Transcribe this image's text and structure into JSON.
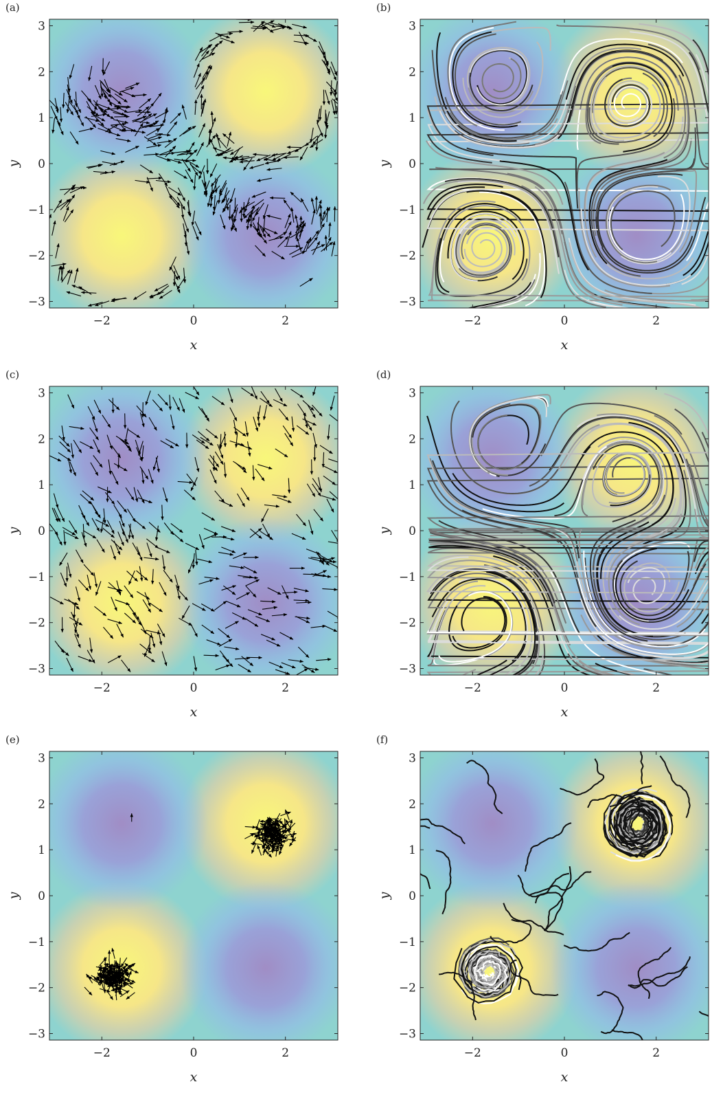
{
  "chart_data": [
    {
      "panel": "(a)",
      "type": "quiver",
      "xlabel": "x",
      "ylabel": "y",
      "xlim": [
        -3.14159,
        3.14159
      ],
      "ylim": [
        -3.14159,
        3.14159
      ],
      "xticks": [
        {
          "v": -2,
          "label": "−2"
        },
        {
          "v": 0,
          "label": "0"
        },
        {
          "v": 2,
          "label": "2"
        }
      ],
      "yticks": [
        {
          "v": 3,
          "label": "3"
        },
        {
          "v": 2,
          "label": "2"
        },
        {
          "v": 1,
          "label": "1"
        },
        {
          "v": 0,
          "label": "0"
        },
        {
          "v": -1,
          "label": "−1"
        },
        {
          "v": -2,
          "label": "−2"
        },
        {
          "v": -3,
          "label": "−3"
        }
      ],
      "background": "sin(x)sin(y) field",
      "maxima": [
        [
          1.57,
          1.57
        ],
        [
          -1.57,
          -1.57
        ]
      ],
      "minima": [
        [
          -1.57,
          1.57
        ],
        [
          1.57,
          -1.57
        ]
      ],
      "agents": "swarm along separatrix band"
    },
    {
      "panel": "(b)",
      "type": "trajectories",
      "xlabel": "x",
      "ylabel": "y",
      "xlim": [
        -3.14159,
        3.14159
      ],
      "ylim": [
        -3.14159,
        3.14159
      ],
      "xticks": [
        {
          "v": -2,
          "label": "−2"
        },
        {
          "v": 0,
          "label": "0"
        },
        {
          "v": 2,
          "label": "2"
        }
      ],
      "yticks": [
        {
          "v": 3,
          "label": "3"
        },
        {
          "v": 2,
          "label": "2"
        },
        {
          "v": 1,
          "label": "1"
        },
        {
          "v": 0,
          "label": "0"
        },
        {
          "v": -1,
          "label": "−1"
        },
        {
          "v": -2,
          "label": "−2"
        },
        {
          "v": -3,
          "label": "−3"
        }
      ],
      "curves": "closed orbits around all four extrema plus separatrix streams"
    },
    {
      "panel": "(c)",
      "type": "quiver",
      "xlabel": "x",
      "ylabel": "y",
      "xlim": [
        -3.14159,
        3.14159
      ],
      "ylim": [
        -3.14159,
        3.14159
      ],
      "xticks": [
        {
          "v": -2,
          "label": "−2"
        },
        {
          "v": 0,
          "label": "0"
        },
        {
          "v": 2,
          "label": "2"
        }
      ],
      "yticks": [
        {
          "v": 3,
          "label": "3"
        },
        {
          "v": 2,
          "label": "2"
        },
        {
          "v": 1,
          "label": "1"
        },
        {
          "v": 0,
          "label": "0"
        },
        {
          "v": -1,
          "label": "−1"
        },
        {
          "v": -2,
          "label": "−2"
        },
        {
          "v": -3,
          "label": "−3"
        }
      ],
      "agents": "spread over domain, aligned along diagonal"
    },
    {
      "panel": "(d)",
      "type": "trajectories",
      "xlabel": "x",
      "ylabel": "y",
      "xlim": [
        -3.14159,
        3.14159
      ],
      "ylim": [
        -3.14159,
        3.14159
      ],
      "xticks": [
        {
          "v": -2,
          "label": "−2"
        },
        {
          "v": 0,
          "label": "0"
        },
        {
          "v": 2,
          "label": "2"
        }
      ],
      "yticks": [
        {
          "v": 3,
          "label": "3"
        },
        {
          "v": 2,
          "label": "2"
        },
        {
          "v": 1,
          "label": "1"
        },
        {
          "v": 0,
          "label": "0"
        },
        {
          "v": -1,
          "label": "−1"
        },
        {
          "v": -2,
          "label": "−2"
        },
        {
          "v": -3,
          "label": "−3"
        }
      ],
      "curves": "orbits around extrema and diagonal transport"
    },
    {
      "panel": "(e)",
      "type": "quiver",
      "xlabel": "x",
      "ylabel": "y",
      "xlim": [
        -3.14159,
        3.14159
      ],
      "ylim": [
        -3.14159,
        3.14159
      ],
      "xticks": [
        {
          "v": -2,
          "label": "−2"
        },
        {
          "v": 0,
          "label": "0"
        },
        {
          "v": 2,
          "label": "2"
        }
      ],
      "yticks": [
        {
          "v": 3,
          "label": "3"
        },
        {
          "v": 2,
          "label": "2"
        },
        {
          "v": 1,
          "label": "1"
        },
        {
          "v": 0,
          "label": "0"
        },
        {
          "v": -1,
          "label": "−1"
        },
        {
          "v": -2,
          "label": "−2"
        },
        {
          "v": -3,
          "label": "−3"
        }
      ],
      "clusters": [
        [
          1.7,
          1.35
        ],
        [
          -1.75,
          -1.75
        ]
      ],
      "agents": "condensed clusters at the two maxima"
    },
    {
      "panel": "(f)",
      "type": "trajectories",
      "xlabel": "x",
      "ylabel": "y",
      "xlim": [
        -3.14159,
        3.14159
      ],
      "ylim": [
        -3.14159,
        3.14159
      ],
      "xticks": [
        {
          "v": -2,
          "label": "−2"
        },
        {
          "v": 0,
          "label": "0"
        },
        {
          "v": 2,
          "label": "2"
        }
      ],
      "yticks": [
        {
          "v": 3,
          "label": "3"
        },
        {
          "v": 2,
          "label": "2"
        },
        {
          "v": 1,
          "label": "1"
        },
        {
          "v": 0,
          "label": "0"
        },
        {
          "v": -1,
          "label": "−1"
        },
        {
          "v": -2,
          "label": "−2"
        },
        {
          "v": -3,
          "label": "−3"
        }
      ],
      "clusters": [
        [
          1.6,
          1.55
        ],
        [
          -1.65,
          -1.65
        ]
      ],
      "curves": "trajectories converging onto the two maxima"
    }
  ],
  "colors": {
    "max": "#f6f47c",
    "mid": "#8ed3cf",
    "min": "#9c8fc9",
    "arrows": "#000000"
  }
}
